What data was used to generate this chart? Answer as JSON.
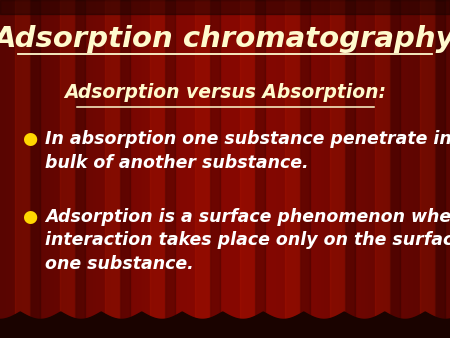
{
  "title": "Adsorption chromatography",
  "subtitle": "Adsorption versus Absorption:",
  "bullet1_line1": "In absorption one substance penetrate in to the",
  "bullet1_line2": "bulk of another substance.",
  "bullet2_line1": "Adsorption is a surface phenomenon where",
  "bullet2_line2": "interaction takes place only on the surface of",
  "bullet2_line3": "one substance.",
  "title_color": "#FFFACD",
  "subtitle_color": "#FFFACD",
  "bullet_color": "#FFFFFF",
  "bullet_dot_color": "#FFD700",
  "title_fontsize": 21,
  "subtitle_fontsize": 13.5,
  "bullet_fontsize": 12.5,
  "underline_color": "#FFFACD"
}
